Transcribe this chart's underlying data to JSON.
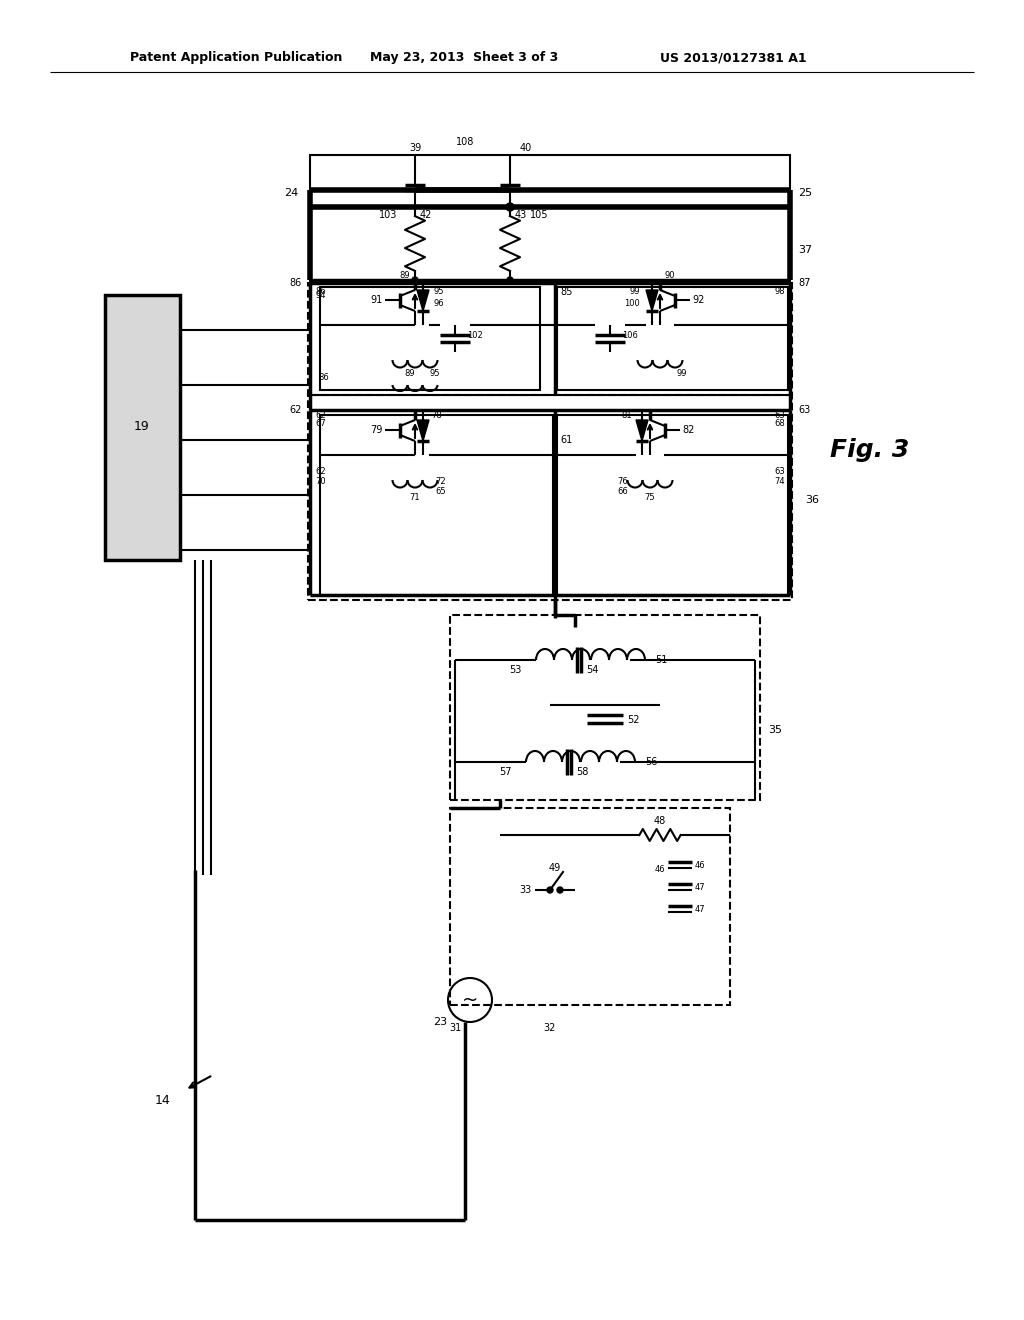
{
  "header_left": "Patent Application Publication",
  "header_mid": "May 23, 2013  Sheet 3 of 3",
  "header_right": "US 2013/0127381 A1",
  "fig_label": "Fig. 3",
  "background_color": "#ffffff"
}
